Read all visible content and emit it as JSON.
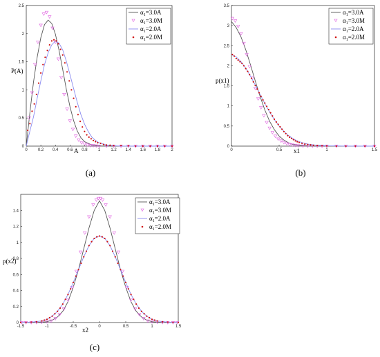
{
  "legend_items": [
    {
      "main": "α",
      "sub": "1",
      "rest": "=3.0A",
      "color": "#555555",
      "marker": "line"
    },
    {
      "main": "α",
      "sub": "1",
      "rest": "=3.0M",
      "color": "#e060e0",
      "marker": "triangle-down"
    },
    {
      "main": "α",
      "sub": "1",
      "rest": "=2.0A",
      "color": "#8a8af0",
      "marker": "line"
    },
    {
      "main": "α",
      "sub": "1",
      "rest": "=2.0M",
      "color": "#d01010",
      "marker": "dot"
    }
  ],
  "chart_data": [
    {
      "type": "line",
      "panel_label": "(a)",
      "ylabel": "P(A)",
      "xlabel": "A",
      "xlim": [
        0,
        2
      ],
      "ylim": [
        0,
        2.5
      ],
      "xticks": [
        "0",
        "0.2",
        "0.4",
        "0.6",
        "0.8",
        "1",
        "1.2",
        "1.4",
        "1.6",
        "1.8",
        "2"
      ],
      "yticks": [
        "0",
        "0.5",
        "1",
        "1.5",
        "2",
        "2.5"
      ],
      "legend_position": "top-right",
      "series": [
        {
          "name": "α1=3.0A",
          "style": "line",
          "x": [
            0,
            0.05,
            0.1,
            0.15,
            0.2,
            0.25,
            0.3,
            0.35,
            0.4,
            0.45,
            0.5,
            0.55,
            0.6,
            0.65,
            0.7,
            0.75,
            0.8,
            0.9,
            1.0,
            1.2,
            1.5,
            2.0
          ],
          "y": [
            0,
            0.6,
            1.14,
            1.58,
            1.93,
            2.16,
            2.24,
            2.18,
            1.99,
            1.7,
            1.36,
            1.01,
            0.7,
            0.45,
            0.27,
            0.15,
            0.08,
            0.02,
            0.004,
            0,
            0,
            0
          ]
        },
        {
          "name": "α1=3.0M",
          "style": "triangle",
          "x": [
            0.04,
            0.08,
            0.12,
            0.16,
            0.2,
            0.24,
            0.28,
            0.32,
            0.36,
            0.4,
            0.44,
            0.48,
            0.52,
            0.56,
            0.6,
            0.64,
            0.68,
            0.72,
            0.76,
            0.8,
            0.84,
            0.88,
            0.92,
            0.96,
            1.0,
            1.1,
            1.2,
            1.3,
            1.4,
            1.5,
            1.6,
            1.7,
            1.8,
            1.9,
            2.0
          ],
          "y": [
            0.5,
            0.95,
            1.45,
            1.85,
            2.15,
            2.35,
            2.38,
            2.3,
            2.1,
            1.85,
            1.55,
            1.22,
            0.92,
            0.66,
            0.45,
            0.3,
            0.18,
            0.11,
            0.06,
            0.04,
            0.02,
            0.01,
            0.01,
            0.005,
            0,
            0,
            0,
            0,
            0,
            0,
            0,
            0,
            0,
            0,
            0
          ]
        },
        {
          "name": "α1=2.0A",
          "style": "line",
          "x": [
            0,
            0.05,
            0.1,
            0.15,
            0.2,
            0.25,
            0.3,
            0.35,
            0.4,
            0.45,
            0.5,
            0.55,
            0.6,
            0.65,
            0.7,
            0.75,
            0.8,
            0.85,
            0.9,
            0.95,
            1.0,
            1.1,
            1.2,
            1.3,
            1.5,
            2.0
          ],
          "y": [
            0,
            0.27,
            0.52,
            0.85,
            1.16,
            1.45,
            1.66,
            1.8,
            1.87,
            1.83,
            1.71,
            1.51,
            1.27,
            1.02,
            0.78,
            0.56,
            0.39,
            0.26,
            0.16,
            0.1,
            0.06,
            0.02,
            0.005,
            0.001,
            0,
            0
          ]
        },
        {
          "name": "α1=2.0M",
          "style": "dot",
          "x": [
            0.02,
            0.05,
            0.08,
            0.11,
            0.14,
            0.17,
            0.2,
            0.23,
            0.26,
            0.29,
            0.32,
            0.35,
            0.38,
            0.41,
            0.44,
            0.47,
            0.5,
            0.53,
            0.56,
            0.59,
            0.62,
            0.65,
            0.68,
            0.71,
            0.74,
            0.77,
            0.8,
            0.83,
            0.86,
            0.89,
            0.92,
            0.95,
            0.98,
            1.02,
            1.06,
            1.1,
            1.15,
            1.2,
            1.3,
            1.4,
            1.5,
            1.6,
            1.7,
            1.8,
            1.9,
            2.0
          ],
          "y": [
            0.28,
            0.4,
            0.62,
            0.75,
            0.92,
            1.12,
            1.3,
            1.45,
            1.58,
            1.7,
            1.8,
            1.87,
            1.89,
            1.87,
            1.82,
            1.72,
            1.62,
            1.48,
            1.32,
            1.16,
            1.0,
            0.85,
            0.7,
            0.56,
            0.44,
            0.34,
            0.26,
            0.2,
            0.16,
            0.13,
            0.1,
            0.08,
            0.06,
            0.05,
            0.03,
            0.02,
            0.015,
            0.01,
            0.01,
            0.005,
            0,
            0,
            0,
            0,
            0,
            0
          ]
        }
      ]
    },
    {
      "type": "line",
      "panel_label": "(b)",
      "ylabel": "p(x1)",
      "xlabel": "x1",
      "xlim": [
        0,
        1.5
      ],
      "ylim": [
        0,
        3.5
      ],
      "xticks": [
        "0",
        "0.5",
        "1",
        "1.5"
      ],
      "yticks": [
        "0",
        "0.5",
        "1",
        "1.5",
        "2",
        "2.5",
        "3",
        "3.5"
      ],
      "legend_position": "top-right",
      "series": [
        {
          "name": "α1=3.0A",
          "style": "line",
          "x": [
            0,
            0.05,
            0.1,
            0.15,
            0.2,
            0.25,
            0.3,
            0.35,
            0.4,
            0.45,
            0.5,
            0.55,
            0.6,
            0.65,
            0.7,
            0.8,
            0.9,
            1.0,
            1.2,
            1.5
          ],
          "y": [
            3.1,
            2.95,
            2.72,
            2.4,
            2.02,
            1.62,
            1.24,
            0.9,
            0.62,
            0.41,
            0.25,
            0.15,
            0.08,
            0.04,
            0.02,
            0.004,
            0.001,
            0,
            0,
            0
          ]
        },
        {
          "name": "α1=3.0M",
          "style": "triangle",
          "x": [
            0.01,
            0.04,
            0.07,
            0.1,
            0.13,
            0.16,
            0.19,
            0.22,
            0.25,
            0.28,
            0.31,
            0.34,
            0.37,
            0.4,
            0.43,
            0.46,
            0.49,
            0.52,
            0.55,
            0.58,
            0.61,
            0.64,
            0.67,
            0.7,
            0.75,
            0.8,
            0.85,
            0.9,
            0.95,
            1.0,
            1.1,
            1.2,
            1.3,
            1.4,
            1.5
          ],
          "y": [
            3.18,
            3.12,
            2.98,
            2.8,
            2.56,
            2.28,
            1.98,
            1.7,
            1.44,
            1.18,
            0.96,
            0.76,
            0.59,
            0.45,
            0.34,
            0.25,
            0.18,
            0.13,
            0.09,
            0.06,
            0.04,
            0.03,
            0.02,
            0.01,
            0.005,
            0,
            0,
            0,
            0,
            0,
            0,
            0,
            0,
            0,
            0
          ]
        },
        {
          "name": "α1=2.0A",
          "style": "line",
          "x": [
            0,
            0.05,
            0.1,
            0.15,
            0.2,
            0.25,
            0.3,
            0.35,
            0.4,
            0.45,
            0.5,
            0.55,
            0.6,
            0.65,
            0.7,
            0.75,
            0.8,
            0.9,
            1.0,
            1.2,
            1.5
          ],
          "y": [
            2.28,
            2.22,
            2.1,
            1.94,
            1.74,
            1.52,
            1.29,
            1.06,
            0.85,
            0.66,
            0.5,
            0.37,
            0.26,
            0.18,
            0.12,
            0.08,
            0.05,
            0.02,
            0.007,
            0.001,
            0
          ]
        },
        {
          "name": "α1=2.0M",
          "style": "dot",
          "x": [
            0.01,
            0.03,
            0.05,
            0.07,
            0.09,
            0.11,
            0.13,
            0.15,
            0.17,
            0.19,
            0.21,
            0.23,
            0.25,
            0.27,
            0.29,
            0.31,
            0.33,
            0.35,
            0.37,
            0.39,
            0.41,
            0.43,
            0.45,
            0.47,
            0.49,
            0.51,
            0.53,
            0.55,
            0.57,
            0.59,
            0.61,
            0.63,
            0.65,
            0.67,
            0.69,
            0.71,
            0.74,
            0.77,
            0.8,
            0.83,
            0.86,
            0.9,
            0.95,
            1.0,
            1.1,
            1.2,
            1.3,
            1.4,
            1.5
          ],
          "y": [
            2.28,
            2.24,
            2.18,
            2.14,
            2.1,
            2.06,
            2.0,
            1.93,
            1.86,
            1.78,
            1.69,
            1.6,
            1.51,
            1.42,
            1.33,
            1.24,
            1.15,
            1.07,
            0.99,
            0.91,
            0.83,
            0.75,
            0.67,
            0.6,
            0.54,
            0.48,
            0.42,
            0.36,
            0.31,
            0.26,
            0.22,
            0.19,
            0.16,
            0.13,
            0.11,
            0.09,
            0.07,
            0.05,
            0.04,
            0.03,
            0.02,
            0.015,
            0.01,
            0.005,
            0,
            0,
            0,
            0,
            0
          ]
        }
      ]
    },
    {
      "type": "line",
      "panel_label": "(c)",
      "ylabel": "p(x2)",
      "xlabel": "x2",
      "xlim": [
        -1.5,
        1.5
      ],
      "ylim": [
        0,
        1.6
      ],
      "xticks": [
        "-1.5",
        "-1",
        "-0.5",
        "0",
        "0.5",
        "1",
        "1.5"
      ],
      "yticks": [
        "0",
        "0.2",
        "0.4",
        "0.6",
        "0.8",
        "1",
        "1.2",
        "1.4"
      ],
      "legend_position": "top-right",
      "series": [
        {
          "name": "α1=3.0A",
          "style": "line",
          "x": [
            -1.5,
            -1.2,
            -1.0,
            -0.9,
            -0.8,
            -0.7,
            -0.6,
            -0.5,
            -0.4,
            -0.3,
            -0.2,
            -0.1,
            0,
            0.1,
            0.2,
            0.3,
            0.4,
            0.5,
            0.6,
            0.7,
            0.8,
            0.9,
            1.0,
            1.2,
            1.5
          ],
          "y": [
            0,
            0.002,
            0.01,
            0.03,
            0.07,
            0.14,
            0.26,
            0.44,
            0.66,
            0.92,
            1.18,
            1.4,
            1.52,
            1.4,
            1.18,
            0.92,
            0.66,
            0.44,
            0.26,
            0.14,
            0.07,
            0.03,
            0.01,
            0.002,
            0
          ]
        },
        {
          "name": "α1=3.0M",
          "style": "triangle",
          "x": [
            -1.48,
            -1.4,
            -1.3,
            -1.2,
            -1.1,
            -1.0,
            -0.92,
            -0.84,
            -0.76,
            -0.68,
            -0.6,
            -0.52,
            -0.44,
            -0.36,
            -0.28,
            -0.2,
            -0.12,
            -0.06,
            -0.02,
            0.02,
            0.06,
            0.12,
            0.2,
            0.28,
            0.36,
            0.44,
            0.52,
            0.6,
            0.68,
            0.76,
            0.84,
            0.92,
            1.0,
            1.1,
            1.2,
            1.3,
            1.4,
            1.48
          ],
          "y": [
            0,
            0,
            0,
            0.002,
            0.005,
            0.01,
            0.02,
            0.05,
            0.1,
            0.17,
            0.28,
            0.44,
            0.64,
            0.88,
            1.12,
            1.32,
            1.47,
            1.53,
            1.55,
            1.55,
            1.53,
            1.47,
            1.32,
            1.12,
            0.88,
            0.64,
            0.44,
            0.28,
            0.17,
            0.1,
            0.05,
            0.02,
            0.01,
            0.005,
            0.002,
            0,
            0,
            0
          ]
        },
        {
          "name": "α1=2.0A",
          "style": "line",
          "x": [
            -1.5,
            -1.3,
            -1.1,
            -1.0,
            -0.9,
            -0.8,
            -0.7,
            -0.6,
            -0.5,
            -0.4,
            -0.3,
            -0.2,
            -0.1,
            0,
            0.1,
            0.2,
            0.3,
            0.4,
            0.5,
            0.6,
            0.7,
            0.8,
            0.9,
            1.0,
            1.1,
            1.3,
            1.5
          ],
          "y": [
            0,
            0.005,
            0.02,
            0.04,
            0.08,
            0.14,
            0.23,
            0.35,
            0.5,
            0.66,
            0.82,
            0.96,
            1.05,
            1.08,
            1.05,
            0.96,
            0.82,
            0.66,
            0.5,
            0.35,
            0.23,
            0.14,
            0.08,
            0.04,
            0.02,
            0.005,
            0
          ]
        },
        {
          "name": "α1=2.0M",
          "style": "dot",
          "x": [
            -1.5,
            -1.4,
            -1.3,
            -1.2,
            -1.1,
            -1.05,
            -1.0,
            -0.95,
            -0.9,
            -0.85,
            -0.8,
            -0.75,
            -0.7,
            -0.65,
            -0.6,
            -0.55,
            -0.5,
            -0.45,
            -0.4,
            -0.35,
            -0.3,
            -0.25,
            -0.2,
            -0.15,
            -0.1,
            -0.05,
            0,
            0.05,
            0.1,
            0.15,
            0.2,
            0.25,
            0.3,
            0.35,
            0.4,
            0.45,
            0.5,
            0.55,
            0.6,
            0.65,
            0.7,
            0.75,
            0.8,
            0.85,
            0.9,
            0.95,
            1.0,
            1.05,
            1.1,
            1.2,
            1.3,
            1.4,
            1.5
          ],
          "y": [
            0,
            0.002,
            0.005,
            0.01,
            0.02,
            0.03,
            0.04,
            0.06,
            0.08,
            0.11,
            0.14,
            0.18,
            0.23,
            0.29,
            0.35,
            0.42,
            0.5,
            0.58,
            0.66,
            0.74,
            0.82,
            0.89,
            0.96,
            1.01,
            1.05,
            1.07,
            1.08,
            1.07,
            1.05,
            1.01,
            0.96,
            0.89,
            0.82,
            0.74,
            0.66,
            0.58,
            0.5,
            0.42,
            0.35,
            0.29,
            0.23,
            0.18,
            0.14,
            0.11,
            0.08,
            0.06,
            0.04,
            0.03,
            0.02,
            0.01,
            0.005,
            0.002,
            0
          ]
        }
      ]
    }
  ]
}
